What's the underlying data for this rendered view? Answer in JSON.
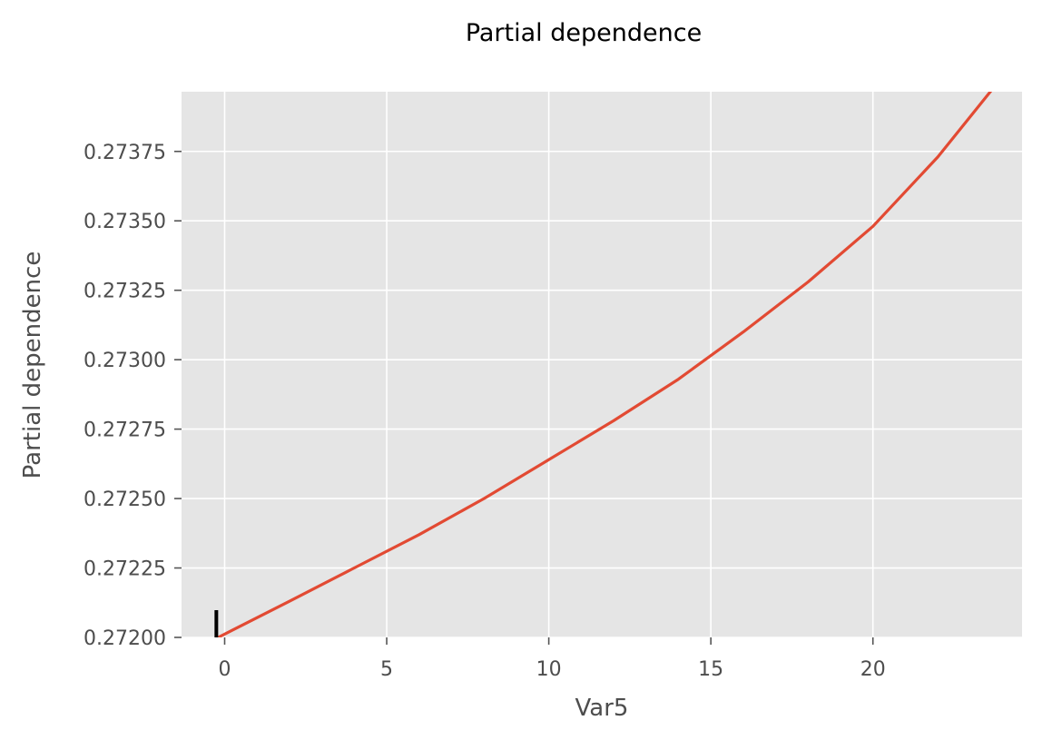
{
  "chart_data": {
    "type": "line",
    "title": "Partial dependence",
    "xlabel": "Var5",
    "ylabel": "Partial dependence",
    "xlim": [
      -1.33,
      24.6
    ],
    "ylim": [
      0.272,
      0.273965
    ],
    "xticks": [
      0,
      5,
      10,
      15,
      20
    ],
    "xtick_labels": [
      "0",
      "5",
      "10",
      "15",
      "20"
    ],
    "yticks": [
      0.272,
      0.27225,
      0.2725,
      0.27275,
      0.273,
      0.27325,
      0.2735,
      0.27375
    ],
    "ytick_labels": [
      "0.27200",
      "0.27225",
      "0.27250",
      "0.27275",
      "0.27300",
      "0.27325",
      "0.27350",
      "0.27375"
    ],
    "grid": true,
    "style": "ggplot",
    "colors": {
      "line": "#e24a33",
      "panel": "#e5e5e5",
      "grid": "#ffffff",
      "rug": "#000000"
    },
    "rug": [
      -0.2
    ],
    "series": [
      {
        "x": [
          -0.2,
          2,
          4,
          6,
          8,
          10,
          12,
          14,
          16,
          18,
          20,
          22,
          24
        ],
        "y": [
          0.272,
          0.27213,
          0.27225,
          0.27237,
          0.2725,
          0.27264,
          0.27278,
          0.27293,
          0.2731,
          0.27328,
          0.27348,
          0.27373,
          0.27402
        ]
      }
    ]
  }
}
